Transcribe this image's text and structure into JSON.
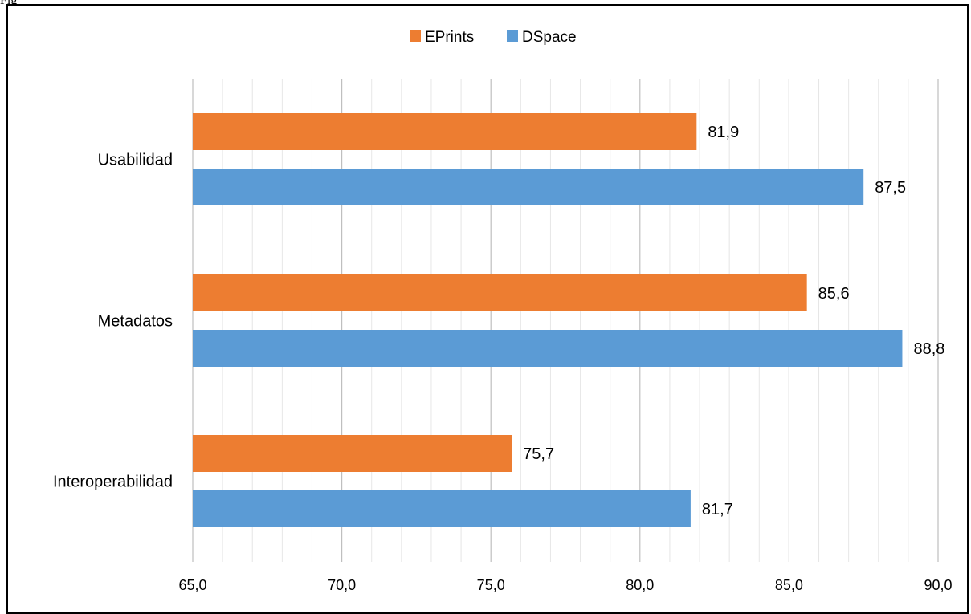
{
  "caption": "Fig",
  "chart_data": {
    "type": "bar",
    "orientation": "horizontal",
    "categories": [
      "Usabilidad",
      "Metadatos",
      "Interoperabilidad"
    ],
    "series": [
      {
        "name": "EPrints",
        "color": "#ED7D31",
        "values": [
          81.9,
          85.6,
          75.7
        ],
        "labels": [
          "81,9",
          "85,6",
          "75,7"
        ]
      },
      {
        "name": "DSpace",
        "color": "#5B9BD5",
        "values": [
          87.5,
          88.8,
          81.7
        ],
        "labels": [
          "87,5",
          "88,8",
          "81,7"
        ]
      }
    ],
    "xlim": [
      65,
      90
    ],
    "x_ticks": [
      "65,0",
      "70,0",
      "75,0",
      "80,0",
      "85,0",
      "90,0"
    ],
    "legend_position": "top-center",
    "grid": true
  }
}
